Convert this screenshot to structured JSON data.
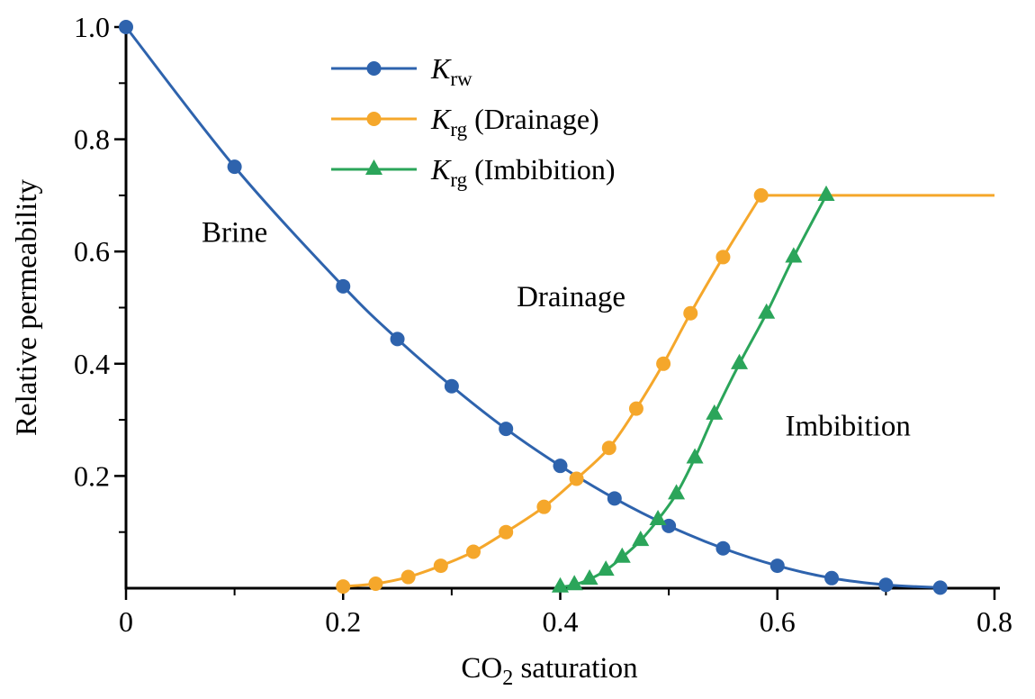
{
  "chart_data": {
    "type": "line",
    "title": "",
    "xlabel": "CO2 saturation",
    "xlabel_parts": {
      "pre": "CO",
      "sub": "2",
      "post": " saturation"
    },
    "ylabel": "Relative permeability",
    "xlim": [
      0,
      0.8
    ],
    "ylim": [
      0,
      1.0
    ],
    "grid": false,
    "legend_position": "top-center",
    "x_ticks": [
      {
        "v": 0,
        "label": "0"
      },
      {
        "v": 0.2,
        "label": "0.2"
      },
      {
        "v": 0.4,
        "label": "0.4"
      },
      {
        "v": 0.6,
        "label": "0.6"
      },
      {
        "v": 0.8,
        "label": "0.8"
      }
    ],
    "x_minor_ticks": [
      0.1,
      0.3,
      0.5,
      0.7
    ],
    "y_ticks": [
      {
        "v": 0.2,
        "label": "0.2"
      },
      {
        "v": 0.4,
        "label": "0.4"
      },
      {
        "v": 0.6,
        "label": "0.6"
      },
      {
        "v": 0.8,
        "label": "0.8"
      },
      {
        "v": 1.0,
        "label": "1.0"
      }
    ],
    "y_minor_ticks": [
      0.1,
      0.3,
      0.5,
      0.7,
      0.9
    ],
    "series": [
      {
        "name": "krw",
        "legend_label": "Krw",
        "legend_parts": {
          "main": "K",
          "sub": "rw",
          "post": ""
        },
        "color": "#2E63AD",
        "marker": "circle",
        "points": [
          [
            0,
            1.0
          ],
          [
            0.1,
            0.751
          ],
          [
            0.2,
            0.538
          ],
          [
            0.25,
            0.444
          ],
          [
            0.3,
            0.36
          ],
          [
            0.35,
            0.284
          ],
          [
            0.4,
            0.218
          ],
          [
            0.45,
            0.16
          ],
          [
            0.5,
            0.111
          ],
          [
            0.55,
            0.071
          ],
          [
            0.6,
            0.04
          ],
          [
            0.65,
            0.018
          ],
          [
            0.7,
            0.006
          ],
          [
            0.75,
            0.001
          ]
        ]
      },
      {
        "name": "krg-drainage",
        "legend_label": "Krg (Drainage)",
        "legend_parts": {
          "main": "K",
          "sub": "rg",
          "post": " (Drainage)"
        },
        "color": "#F5A72B",
        "marker": "circle",
        "points": [
          [
            0.2,
            0.003
          ],
          [
            0.23,
            0.008
          ],
          [
            0.26,
            0.02
          ],
          [
            0.29,
            0.04
          ],
          [
            0.32,
            0.065
          ],
          [
            0.35,
            0.1
          ],
          [
            0.385,
            0.145
          ],
          [
            0.415,
            0.195
          ],
          [
            0.445,
            0.25
          ],
          [
            0.47,
            0.32
          ],
          [
            0.495,
            0.4
          ],
          [
            0.52,
            0.49
          ],
          [
            0.55,
            0.59
          ],
          [
            0.585,
            0.7
          ]
        ],
        "extra_line_points": [
          [
            0.8,
            0.7
          ]
        ]
      },
      {
        "name": "krg-imbibition",
        "legend_label": "Krg (Imbibition)",
        "legend_parts": {
          "main": "K",
          "sub": "rg",
          "post": " (Imbibition)"
        },
        "color": "#2BA55A",
        "marker": "triangle",
        "points": [
          [
            0.4,
            0.002
          ],
          [
            0.413,
            0.006
          ],
          [
            0.427,
            0.016
          ],
          [
            0.442,
            0.032
          ],
          [
            0.457,
            0.055
          ],
          [
            0.474,
            0.085
          ],
          [
            0.49,
            0.122
          ],
          [
            0.507,
            0.168
          ],
          [
            0.524,
            0.232
          ],
          [
            0.542,
            0.31
          ],
          [
            0.565,
            0.4
          ],
          [
            0.59,
            0.49
          ],
          [
            0.615,
            0.59
          ],
          [
            0.645,
            0.7
          ]
        ]
      }
    ],
    "annotations": [
      {
        "text": "Brine",
        "x": 0.1,
        "y": 0.635
      },
      {
        "text": "Drainage",
        "x": 0.41,
        "y": 0.52
      },
      {
        "text": "Imbibition",
        "x": 0.665,
        "y": 0.29
      }
    ]
  }
}
